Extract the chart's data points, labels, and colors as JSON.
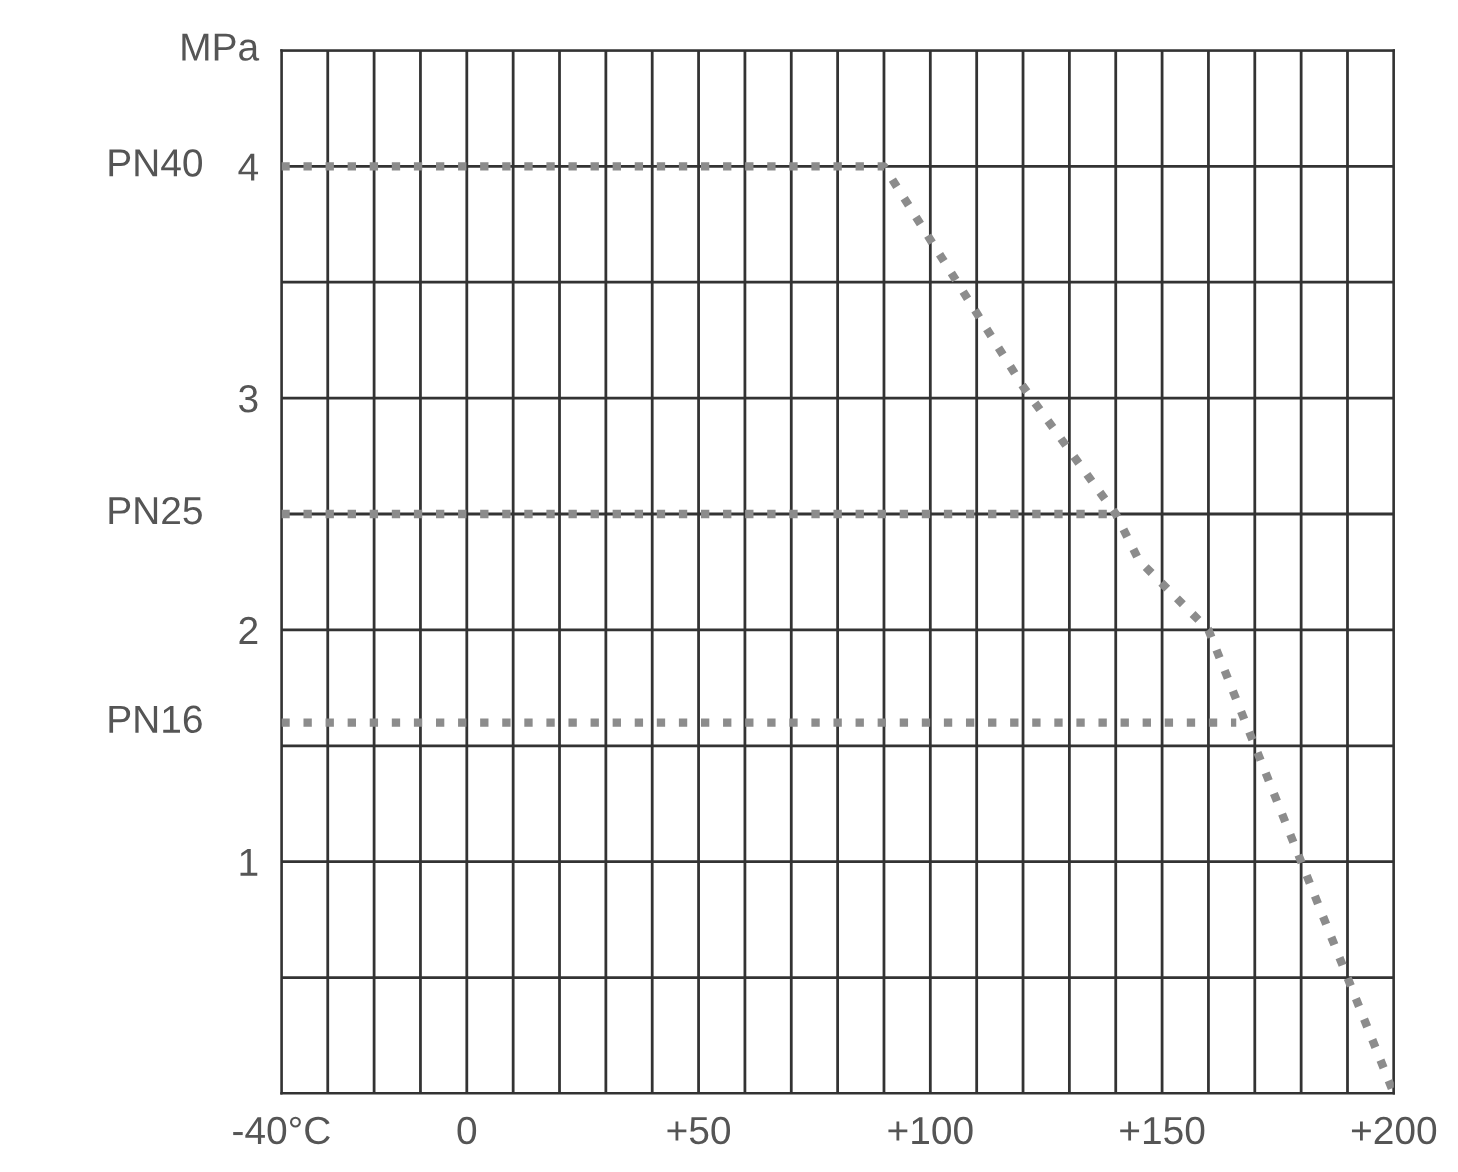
{
  "chart_data": {
    "type": "line",
    "ylabel": "MPa",
    "xlim": [
      -40,
      200
    ],
    "ylim": [
      0,
      4.5
    ],
    "xticks": [
      {
        "value": -40,
        "label": "-40°C"
      },
      {
        "value": -30,
        "label": null
      },
      {
        "value": -20,
        "label": null
      },
      {
        "value": -10,
        "label": null
      },
      0,
      {
        "value": 10,
        "label": null
      },
      {
        "value": 20,
        "label": null
      },
      {
        "value": 30,
        "label": null
      },
      {
        "value": 40,
        "label": null
      },
      {
        "value": 50,
        "label": "+50"
      },
      {
        "value": 60,
        "label": null
      },
      {
        "value": 70,
        "label": null
      },
      {
        "value": 80,
        "label": null
      },
      {
        "value": 90,
        "label": null
      },
      {
        "value": 100,
        "label": "+100"
      },
      {
        "value": 110,
        "label": null
      },
      {
        "value": 120,
        "label": null
      },
      {
        "value": 130,
        "label": null
      },
      {
        "value": 140,
        "label": null
      },
      {
        "value": 150,
        "label": "+150"
      },
      {
        "value": 160,
        "label": null
      },
      {
        "value": 170,
        "label": null
      },
      {
        "value": 180,
        "label": null
      },
      {
        "value": 190,
        "label": null
      },
      {
        "value": 200,
        "label": "+200"
      }
    ],
    "yticks": [
      {
        "value": 0,
        "label": null
      },
      {
        "value": 0.5,
        "label": null
      },
      1,
      {
        "value": 1.5,
        "label": null
      },
      2,
      {
        "value": 2.5,
        "label": null
      },
      3,
      {
        "value": 3.5,
        "label": null
      },
      4,
      {
        "value": 4.5,
        "label": null
      }
    ],
    "grid": true,
    "line_style": "dotted",
    "marker": "none",
    "legend": false,
    "series": [
      {
        "name": "PN40",
        "color": "#8c8c8c",
        "x": [
          -40,
          90,
          120,
          140,
          145,
          160,
          170,
          180,
          200
        ],
        "values": [
          4,
          4,
          3.05,
          2.5,
          2.3,
          2.0,
          1.5,
          1.0,
          0
        ]
      },
      {
        "name": "PN25",
        "color": "#8c8c8c",
        "x": [
          -40,
          140
        ],
        "values": [
          2.5,
          2.5
        ]
      },
      {
        "name": "PN16",
        "color": "#8c8c8c",
        "x": [
          -40,
          166
        ],
        "values": [
          1.6,
          1.6
        ]
      }
    ]
  }
}
